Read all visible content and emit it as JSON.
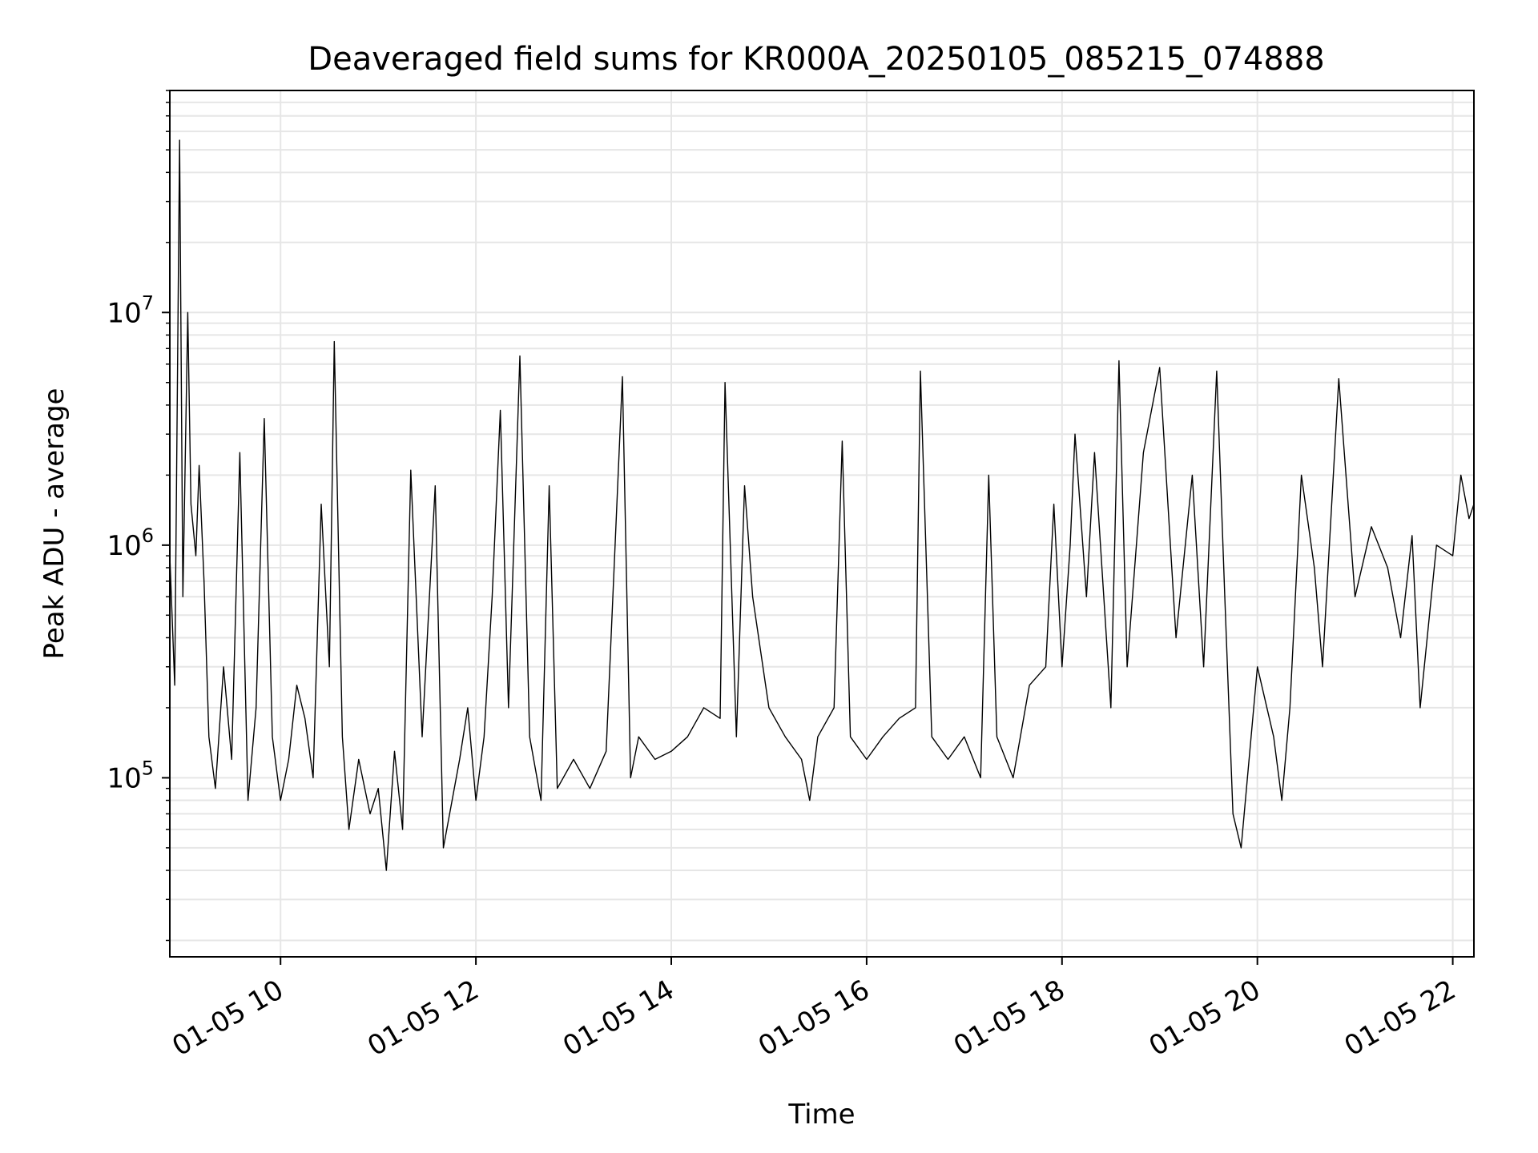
{
  "chart_data": {
    "type": "line",
    "title": "Deaveraged field sums for KR000A_20250105_085215_074888",
    "xlabel": "Time",
    "ylabel": "Peak ADU - average",
    "yscale": "log",
    "xlim": [
      "2025-01-05T08:52",
      "2025-01-05T22:13"
    ],
    "ylim": [
      17000,
      90000000
    ],
    "grid": true,
    "line_color": "#000000",
    "x_ticks": [
      {
        "time": "2025-01-05T10:00",
        "label": "01-05 10"
      },
      {
        "time": "2025-01-05T12:00",
        "label": "01-05 12"
      },
      {
        "time": "2025-01-05T14:00",
        "label": "01-05 14"
      },
      {
        "time": "2025-01-05T16:00",
        "label": "01-05 16"
      },
      {
        "time": "2025-01-05T18:00",
        "label": "01-05 18"
      },
      {
        "time": "2025-01-05T20:00",
        "label": "01-05 20"
      },
      {
        "time": "2025-01-05T22:00",
        "label": "01-05 22"
      }
    ],
    "y_ticks": [
      {
        "value": 100000,
        "base": "10",
        "exp": "5"
      },
      {
        "value": 1000000,
        "base": "10",
        "exp": "6"
      },
      {
        "value": 10000000,
        "base": "10",
        "exp": "7"
      }
    ],
    "series": [
      {
        "x": [
          "2025-01-05T08:52",
          "2025-01-05T08:55",
          "2025-01-05T08:58",
          "2025-01-05T09:00",
          "2025-01-05T09:03",
          "2025-01-05T09:05",
          "2025-01-05T09:08",
          "2025-01-05T09:10",
          "2025-01-05T09:13",
          "2025-01-05T09:16",
          "2025-01-05T09:20",
          "2025-01-05T09:25",
          "2025-01-05T09:30",
          "2025-01-05T09:35",
          "2025-01-05T09:40",
          "2025-01-05T09:45",
          "2025-01-05T09:50",
          "2025-01-05T09:55",
          "2025-01-05T10:00",
          "2025-01-05T10:05",
          "2025-01-05T10:10",
          "2025-01-05T10:15",
          "2025-01-05T10:20",
          "2025-01-05T10:25",
          "2025-01-05T10:30",
          "2025-01-05T10:33",
          "2025-01-05T10:38",
          "2025-01-05T10:42",
          "2025-01-05T10:48",
          "2025-01-05T10:55",
          "2025-01-05T11:00",
          "2025-01-05T11:05",
          "2025-01-05T11:10",
          "2025-01-05T11:15",
          "2025-01-05T11:20",
          "2025-01-05T11:27",
          "2025-01-05T11:35",
          "2025-01-05T11:40",
          "2025-01-05T11:50",
          "2025-01-05T11:55",
          "2025-01-05T12:00",
          "2025-01-05T12:05",
          "2025-01-05T12:10",
          "2025-01-05T12:15",
          "2025-01-05T12:20",
          "2025-01-05T12:27",
          "2025-01-05T12:33",
          "2025-01-05T12:40",
          "2025-01-05T12:45",
          "2025-01-05T12:50",
          "2025-01-05T13:00",
          "2025-01-05T13:10",
          "2025-01-05T13:20",
          "2025-01-05T13:30",
          "2025-01-05T13:35",
          "2025-01-05T13:40",
          "2025-01-05T13:50",
          "2025-01-05T14:00",
          "2025-01-05T14:10",
          "2025-01-05T14:20",
          "2025-01-05T14:30",
          "2025-01-05T14:33",
          "2025-01-05T14:40",
          "2025-01-05T14:45",
          "2025-01-05T14:50",
          "2025-01-05T15:00",
          "2025-01-05T15:10",
          "2025-01-05T15:20",
          "2025-01-05T15:25",
          "2025-01-05T15:30",
          "2025-01-05T15:40",
          "2025-01-05T15:45",
          "2025-01-05T15:50",
          "2025-01-05T16:00",
          "2025-01-05T16:10",
          "2025-01-05T16:20",
          "2025-01-05T16:30",
          "2025-01-05T16:33",
          "2025-01-05T16:40",
          "2025-01-05T16:50",
          "2025-01-05T17:00",
          "2025-01-05T17:10",
          "2025-01-05T17:15",
          "2025-01-05T17:20",
          "2025-01-05T17:30",
          "2025-01-05T17:40",
          "2025-01-05T17:50",
          "2025-01-05T17:55",
          "2025-01-05T18:00",
          "2025-01-05T18:05",
          "2025-01-05T18:08",
          "2025-01-05T18:15",
          "2025-01-05T18:20",
          "2025-01-05T18:30",
          "2025-01-05T18:35",
          "2025-01-05T18:40",
          "2025-01-05T18:50",
          "2025-01-05T19:00",
          "2025-01-05T19:10",
          "2025-01-05T19:20",
          "2025-01-05T19:27",
          "2025-01-05T19:35",
          "2025-01-05T19:40",
          "2025-01-05T19:45",
          "2025-01-05T19:50",
          "2025-01-05T20:00",
          "2025-01-05T20:10",
          "2025-01-05T20:15",
          "2025-01-05T20:20",
          "2025-01-05T20:27",
          "2025-01-05T20:35",
          "2025-01-05T20:40",
          "2025-01-05T20:50",
          "2025-01-05T21:00",
          "2025-01-05T21:10",
          "2025-01-05T21:20",
          "2025-01-05T21:28",
          "2025-01-05T21:35",
          "2025-01-05T21:40",
          "2025-01-05T21:50",
          "2025-01-05T22:00",
          "2025-01-05T22:05",
          "2025-01-05T22:10",
          "2025-01-05T22:13"
        ],
        "y": [
          900000,
          250000,
          55000000,
          600000,
          10000000,
          1500000,
          900000,
          2200000,
          700000,
          150000,
          90000,
          300000,
          120000,
          2500000,
          80000,
          200000,
          3500000,
          150000,
          80000,
          120000,
          250000,
          180000,
          100000,
          1500000,
          300000,
          7500000,
          150000,
          60000,
          120000,
          70000,
          90000,
          40000,
          130000,
          60000,
          2100000,
          150000,
          1800000,
          50000,
          120000,
          200000,
          80000,
          150000,
          600000,
          3800000,
          200000,
          6500000,
          150000,
          80000,
          1800000,
          90000,
          120000,
          90000,
          130000,
          5300000,
          100000,
          150000,
          120000,
          130000,
          150000,
          200000,
          180000,
          5000000,
          150000,
          1800000,
          600000,
          200000,
          150000,
          120000,
          80000,
          150000,
          200000,
          2800000,
          150000,
          120000,
          150000,
          180000,
          200000,
          5600000,
          150000,
          120000,
          150000,
          100000,
          2000000,
          150000,
          100000,
          250000,
          300000,
          1500000,
          300000,
          1000000,
          3000000,
          600000,
          2500000,
          200000,
          6200000,
          300000,
          2500000,
          5800000,
          400000,
          2000000,
          300000,
          5600000,
          600000,
          70000,
          50000,
          300000,
          150000,
          80000,
          200000,
          2000000,
          800000,
          300000,
          5200000,
          600000,
          1200000,
          800000,
          400000,
          1100000,
          200000,
          1000000,
          900000,
          2000000,
          1300000,
          1500000
        ]
      }
    ]
  }
}
